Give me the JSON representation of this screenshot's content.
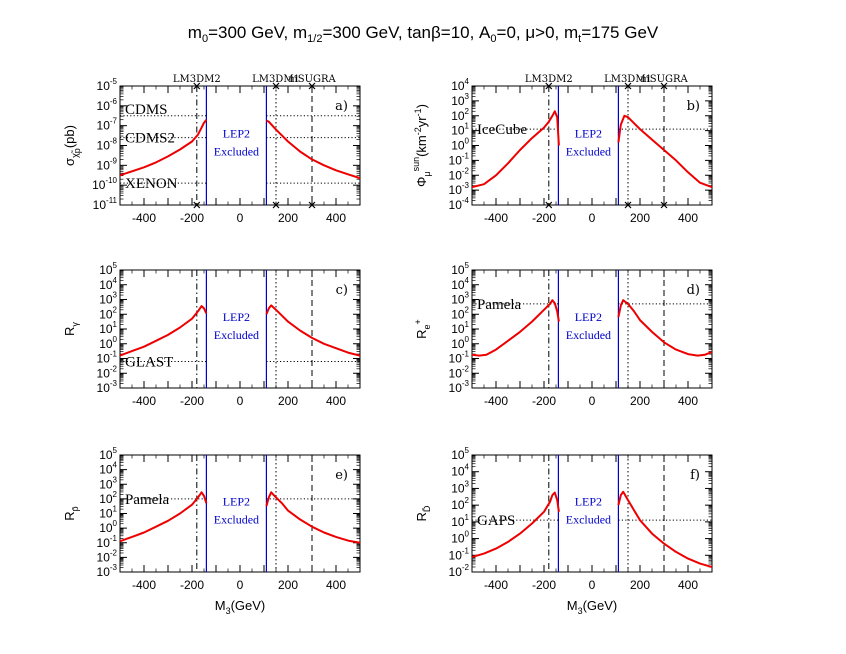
{
  "figure": {
    "title_parts": [
      "m",
      "0",
      "=300 GeV, m",
      "1/2",
      "=300 GeV, tanβ=10, A",
      "0",
      "=0, μ>0, m",
      "t",
      "=175 GeV"
    ],
    "top_markers": [
      "LM3DM2",
      "LM3DM1",
      "mSUGRA"
    ],
    "excluded_lines": [
      "LEP2",
      "Excluded"
    ],
    "xlabel_main": "M",
    "xlabel_sub": "3",
    "xlabel_tail": "(GeV)",
    "x_ticks": [
      "-400",
      "-200",
      "0",
      "200",
      "400"
    ],
    "colors": {
      "curve": "#ee0000",
      "lep2": "#0000cc",
      "axis": "#000000"
    }
  },
  "chart_data": [
    {
      "type": "line",
      "panel": "a)",
      "ylabel": [
        "σ",
        "χ̃",
        "p",
        "(pb)"
      ],
      "yscale": "log",
      "ylim_exp": [
        -11,
        -5
      ],
      "xlim": [
        -500,
        500
      ],
      "limits": [
        {
          "label": "CDMS",
          "log10_value": -6.5
        },
        {
          "label": "CDMS2",
          "log10_value": -7.6
        },
        {
          "label": "XENON",
          "log10_value": -9.9
        }
      ],
      "series": [
        {
          "side": "left",
          "points": [
            [
              -500,
              -9.5
            ],
            [
              -450,
              -9.3
            ],
            [
              -400,
              -9.1
            ],
            [
              -350,
              -8.85
            ],
            [
              -300,
              -8.55
            ],
            [
              -250,
              -8.2
            ],
            [
              -200,
              -7.8
            ],
            [
              -175,
              -7.45
            ],
            [
              -160,
              -7.1
            ],
            [
              -150,
              -6.85
            ],
            [
              -140,
              -6.7
            ]
          ]
        },
        {
          "side": "right",
          "points": [
            [
              110,
              -6.75
            ],
            [
              120,
              -6.8
            ],
            [
              150,
              -7.2
            ],
            [
              200,
              -7.8
            ],
            [
              250,
              -8.3
            ],
            [
              300,
              -8.7
            ],
            [
              350,
              -9.0
            ],
            [
              400,
              -9.25
            ],
            [
              450,
              -9.45
            ],
            [
              500,
              -9.65
            ]
          ]
        }
      ]
    },
    {
      "type": "line",
      "panel": "b)",
      "ylabel": [
        "Φ",
        "μ",
        "sun",
        "(km",
        "-2",
        "yr",
        "-1",
        ")"
      ],
      "yscale": "log",
      "ylim_exp": [
        -4,
        4
      ],
      "xlim": [
        -500,
        500
      ],
      "limits": [
        {
          "label": "IceCube",
          "log10_value": 1.1
        }
      ],
      "series": [
        {
          "side": "left",
          "points": [
            [
              -500,
              -2.8
            ],
            [
              -450,
              -2.6
            ],
            [
              -400,
              -2.0
            ],
            [
              -350,
              -1.2
            ],
            [
              -300,
              -0.3
            ],
            [
              -250,
              0.5
            ],
            [
              -200,
              1.2
            ],
            [
              -180,
              1.6
            ],
            [
              -165,
              2.0
            ],
            [
              -155,
              2.3
            ],
            [
              -145,
              1.9
            ],
            [
              -138,
              0.0
            ]
          ]
        },
        {
          "side": "right",
          "points": [
            [
              110,
              0.2
            ],
            [
              120,
              1.4
            ],
            [
              135,
              2.0
            ],
            [
              150,
              1.9
            ],
            [
              175,
              1.5
            ],
            [
              200,
              1.1
            ],
            [
              250,
              0.4
            ],
            [
              300,
              -0.3
            ],
            [
              350,
              -1.0
            ],
            [
              400,
              -1.8
            ],
            [
              450,
              -2.5
            ],
            [
              500,
              -2.8
            ]
          ]
        }
      ]
    },
    {
      "type": "line",
      "panel": "c)",
      "ylabel": [
        "R",
        "γ"
      ],
      "yscale": "log",
      "ylim_exp": [
        -3,
        5
      ],
      "xlim": [
        -500,
        500
      ],
      "limits": [
        {
          "label": "GLAST",
          "log10_value": -1.2
        }
      ],
      "series": [
        {
          "side": "left",
          "points": [
            [
              -500,
              -0.8
            ],
            [
              -450,
              -0.5
            ],
            [
              -400,
              -0.2
            ],
            [
              -350,
              0.2
            ],
            [
              -300,
              0.6
            ],
            [
              -250,
              1.1
            ],
            [
              -200,
              1.7
            ],
            [
              -175,
              2.2
            ],
            [
              -160,
              2.55
            ],
            [
              -150,
              2.4
            ],
            [
              -140,
              2.05
            ]
          ]
        },
        {
          "side": "right",
          "points": [
            [
              110,
              2.0
            ],
            [
              120,
              2.4
            ],
            [
              130,
              2.6
            ],
            [
              150,
              2.3
            ],
            [
              175,
              1.9
            ],
            [
              200,
              1.5
            ],
            [
              250,
              0.9
            ],
            [
              300,
              0.4
            ],
            [
              350,
              0.0
            ],
            [
              400,
              -0.3
            ],
            [
              450,
              -0.6
            ],
            [
              500,
              -0.8
            ]
          ]
        }
      ]
    },
    {
      "type": "line",
      "panel": "d)",
      "ylabel": [
        "R",
        "e",
        "+"
      ],
      "yscale": "log",
      "ylim_exp": [
        -3,
        5
      ],
      "xlim": [
        -500,
        500
      ],
      "limits": [
        {
          "label": "Pamela",
          "log10_value": 2.7
        }
      ],
      "series": [
        {
          "side": "left",
          "points": [
            [
              -500,
              -0.75
            ],
            [
              -470,
              -0.8
            ],
            [
              -440,
              -0.75
            ],
            [
              -400,
              -0.4
            ],
            [
              -350,
              0.2
            ],
            [
              -300,
              0.8
            ],
            [
              -250,
              1.5
            ],
            [
              -200,
              2.3
            ],
            [
              -175,
              2.7
            ],
            [
              -165,
              2.95
            ],
            [
              -155,
              2.75
            ],
            [
              -145,
              2.2
            ],
            [
              -138,
              1.5
            ]
          ]
        },
        {
          "side": "right",
          "points": [
            [
              110,
              1.8
            ],
            [
              120,
              2.6
            ],
            [
              130,
              2.95
            ],
            [
              150,
              2.7
            ],
            [
              175,
              2.2
            ],
            [
              200,
              1.6
            ],
            [
              250,
              0.8
            ],
            [
              300,
              0.1
            ],
            [
              350,
              -0.4
            ],
            [
              400,
              -0.7
            ],
            [
              440,
              -0.8
            ],
            [
              470,
              -0.75
            ],
            [
              500,
              -0.55
            ]
          ]
        }
      ]
    },
    {
      "type": "line",
      "panel": "e)",
      "ylabel": [
        "R",
        "p̄"
      ],
      "yscale": "log",
      "ylim_exp": [
        -3,
        5
      ],
      "xlim": [
        -500,
        500
      ],
      "limits": [
        {
          "label": "Pamela",
          "log10_value": 2.0
        }
      ],
      "series": [
        {
          "side": "left",
          "points": [
            [
              -500,
              -0.9
            ],
            [
              -450,
              -0.6
            ],
            [
              -400,
              -0.3
            ],
            [
              -350,
              0.1
            ],
            [
              -300,
              0.5
            ],
            [
              -250,
              1.0
            ],
            [
              -200,
              1.6
            ],
            [
              -175,
              2.1
            ],
            [
              -160,
              2.45
            ],
            [
              -150,
              2.2
            ],
            [
              -140,
              1.7
            ]
          ]
        },
        {
          "side": "right",
          "points": [
            [
              110,
              1.5
            ],
            [
              120,
              2.1
            ],
            [
              130,
              2.45
            ],
            [
              150,
              2.1
            ],
            [
              175,
              1.7
            ],
            [
              200,
              1.2
            ],
            [
              250,
              0.6
            ],
            [
              300,
              0.1
            ],
            [
              350,
              -0.3
            ],
            [
              400,
              -0.6
            ],
            [
              450,
              -0.85
            ],
            [
              500,
              -1.0
            ]
          ]
        }
      ]
    },
    {
      "type": "line",
      "panel": "f)",
      "ylabel": [
        "R",
        "D̄"
      ],
      "yscale": "log",
      "ylim_exp": [
        -2,
        5
      ],
      "xlim": [
        -500,
        500
      ],
      "limits": [
        {
          "label": "GAPS",
          "log10_value": 1.1
        }
      ],
      "series": [
        {
          "side": "left",
          "points": [
            [
              -500,
              -1.1
            ],
            [
              -450,
              -0.9
            ],
            [
              -400,
              -0.6
            ],
            [
              -350,
              -0.2
            ],
            [
              -300,
              0.3
            ],
            [
              -250,
              0.9
            ],
            [
              -200,
              1.6
            ],
            [
              -175,
              2.2
            ],
            [
              -165,
              2.6
            ],
            [
              -155,
              2.75
            ],
            [
              -145,
              2.3
            ],
            [
              -138,
              1.6
            ]
          ]
        },
        {
          "side": "right",
          "points": [
            [
              110,
              2.0
            ],
            [
              120,
              2.6
            ],
            [
              130,
              2.8
            ],
            [
              150,
              2.3
            ],
            [
              175,
              1.7
            ],
            [
              200,
              1.1
            ],
            [
              250,
              0.3
            ],
            [
              300,
              -0.3
            ],
            [
              350,
              -0.8
            ],
            [
              400,
              -1.2
            ],
            [
              450,
              -1.5
            ],
            [
              500,
              -1.7
            ]
          ]
        }
      ]
    }
  ]
}
